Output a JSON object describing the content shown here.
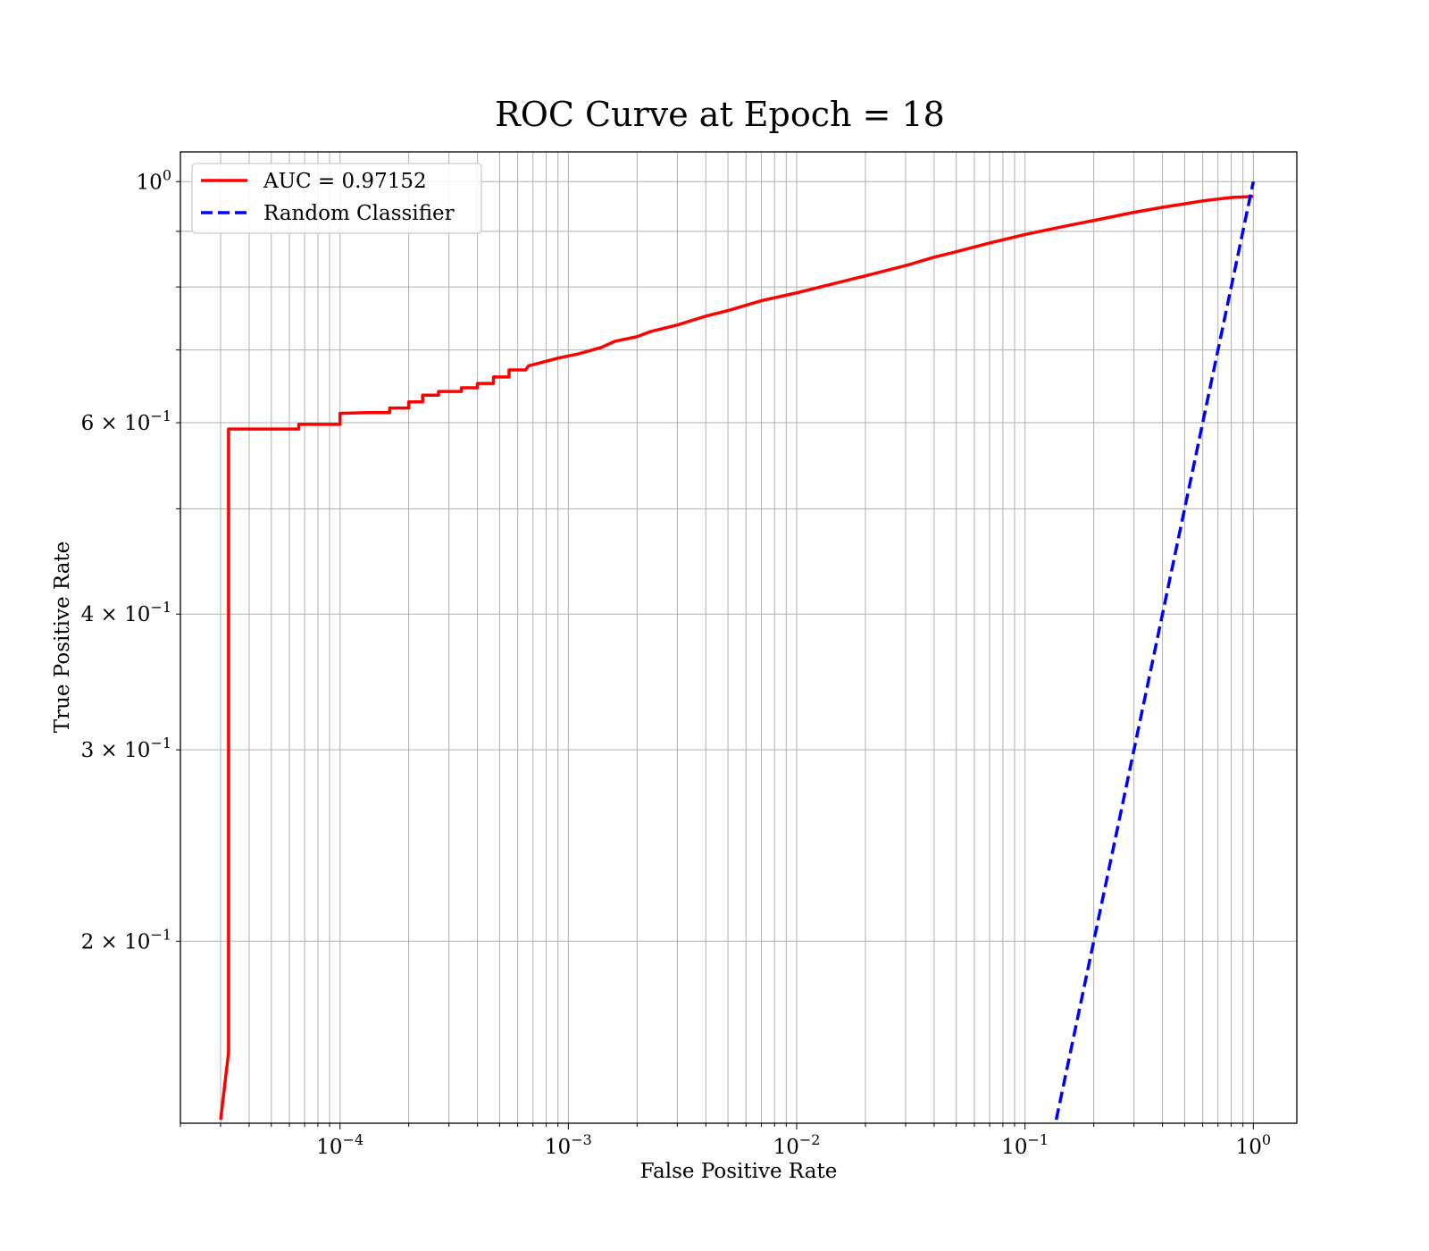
{
  "chart_data": {
    "type": "line",
    "title": "ROC Curve at Epoch = 18",
    "xlabel": "False Positive Rate",
    "ylabel": "True Positive Rate",
    "xscale": "log",
    "yscale": "log",
    "xlim": [
      2e-05,
      1.55
    ],
    "ylim": [
      0.136,
      1.065
    ],
    "grid": true,
    "legend_position": "top-left",
    "x_tick_labels": [
      {
        "value": 0.0001,
        "base": "10",
        "exp": "−4"
      },
      {
        "value": 0.001,
        "base": "10",
        "exp": "−3"
      },
      {
        "value": 0.01,
        "base": "10",
        "exp": "−2"
      },
      {
        "value": 0.1,
        "base": "10",
        "exp": "−1"
      },
      {
        "value": 1,
        "base": "10",
        "exp": "0"
      }
    ],
    "y_tick_labels": [
      {
        "value": 0.2,
        "base": "2 × 10",
        "exp": "−1"
      },
      {
        "value": 0.3,
        "base": "3 × 10",
        "exp": "−1"
      },
      {
        "value": 0.4,
        "base": "4 × 10",
        "exp": "−1"
      },
      {
        "value": 0.6,
        "base": "6 × 10",
        "exp": "−1"
      },
      {
        "value": 1,
        "base": "10",
        "exp": "0"
      }
    ],
    "series": [
      {
        "name": "AUC = 0.97152",
        "color": "#ff0000",
        "style": "solid",
        "x": [
          3e-05,
          3.25e-05,
          3.25e-05,
          6.6e-05,
          6.6e-05,
          0.0001,
          0.0001,
          0.000133,
          0.000165,
          0.000165,
          0.0002,
          0.0002,
          0.00023,
          0.00023,
          0.00027,
          0.00027,
          0.00034,
          0.00034,
          0.0004,
          0.0004,
          0.00047,
          0.00047,
          0.00055,
          0.00055,
          0.00065,
          0.00067,
          0.00075,
          0.0009,
          0.0011,
          0.0014,
          0.0016,
          0.002,
          0.0023,
          0.003,
          0.004,
          0.005,
          0.007,
          0.01,
          0.015,
          0.02,
          0.03,
          0.04,
          0.05,
          0.07,
          0.1,
          0.15,
          0.2,
          0.3,
          0.4,
          0.5,
          0.6,
          0.8,
          1.0
        ],
        "y": [
          0.137,
          0.158,
          0.592,
          0.592,
          0.598,
          0.598,
          0.612,
          0.613,
          0.613,
          0.619,
          0.619,
          0.627,
          0.627,
          0.636,
          0.636,
          0.641,
          0.641,
          0.646,
          0.646,
          0.652,
          0.652,
          0.661,
          0.661,
          0.671,
          0.671,
          0.677,
          0.681,
          0.688,
          0.694,
          0.704,
          0.713,
          0.72,
          0.728,
          0.738,
          0.752,
          0.761,
          0.777,
          0.79,
          0.807,
          0.819,
          0.837,
          0.852,
          0.862,
          0.878,
          0.894,
          0.91,
          0.921,
          0.937,
          0.947,
          0.954,
          0.96,
          0.967,
          0.969
        ]
      },
      {
        "name": "Random Classifier",
        "color": "#0000ff",
        "style": "dashed",
        "x": [
          0.137,
          1.0
        ],
        "y": [
          0.137,
          1.0
        ]
      }
    ]
  }
}
